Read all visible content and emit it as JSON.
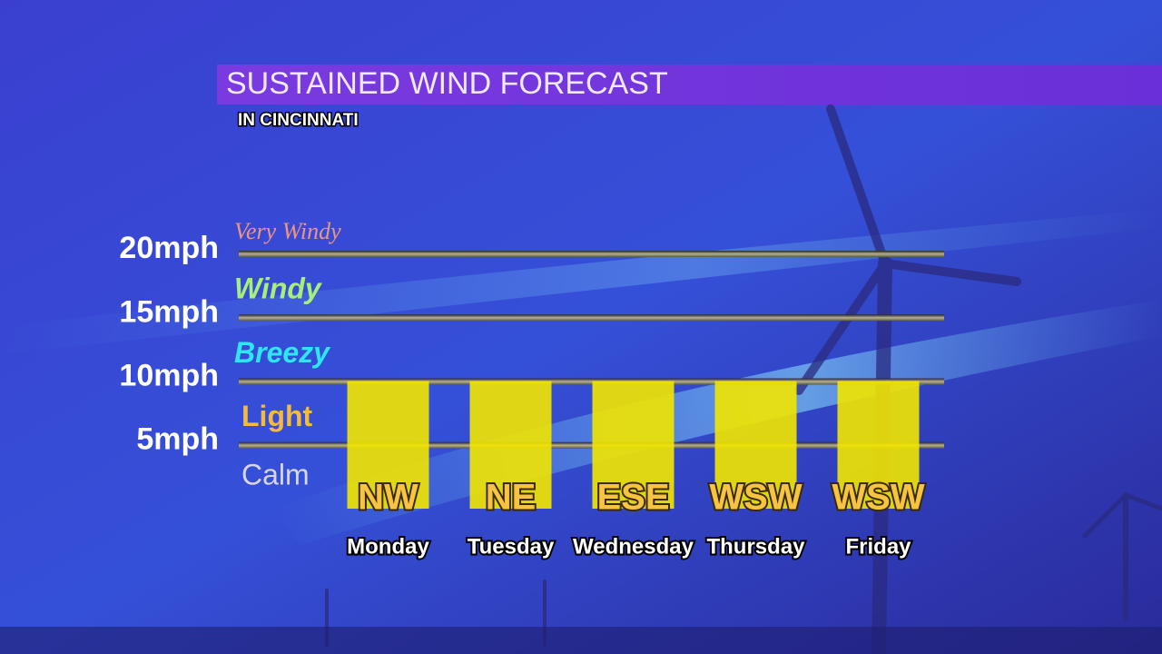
{
  "chart_data": {
    "type": "bar",
    "title": "SUSTAINED WIND FORECAST",
    "subtitle": "IN CINCINNATI",
    "categories": [
      "Monday",
      "Tuesday",
      "Wednesday",
      "Thursday",
      "Friday"
    ],
    "values": [
      10,
      10,
      10,
      10,
      10
    ],
    "directions": [
      "NW",
      "NE",
      "ESE",
      "WSW",
      "WSW"
    ],
    "color": "#f2e600",
    "ylim": [
      0,
      21
    ],
    "yticks": [
      {
        "value": 5,
        "label": "5mph"
      },
      {
        "value": 10,
        "label": "10mph"
      },
      {
        "value": 15,
        "label": "15mph"
      },
      {
        "value": 20,
        "label": "20mph"
      }
    ],
    "grid": true,
    "zones": [
      {
        "label": "Calm",
        "color": "#d6d6e6"
      },
      {
        "label": "Light",
        "color": "#f5b942"
      },
      {
        "label": "Breezy",
        "color": "#2ee6f2"
      },
      {
        "label": "Windy",
        "color": "#a6f07a"
      },
      {
        "label": "Very Windy",
        "color": "#ee9480"
      }
    ]
  }
}
